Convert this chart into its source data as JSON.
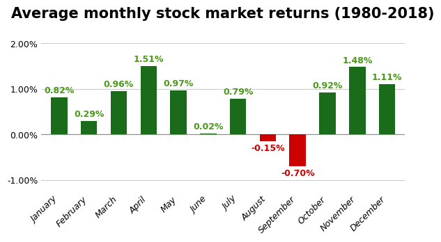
{
  "title": "Average monthly stock market returns (1980-2018)",
  "categories": [
    "January",
    "February",
    "March",
    "April",
    "May",
    "June",
    "July",
    "August",
    "September",
    "October",
    "November",
    "December"
  ],
  "values": [
    0.82,
    0.29,
    0.96,
    1.51,
    0.97,
    0.02,
    0.79,
    -0.15,
    -0.7,
    0.92,
    1.48,
    1.11
  ],
  "bar_colors": [
    "#1a6b1a",
    "#1a6b1a",
    "#1a6b1a",
    "#1a6b1a",
    "#1a6b1a",
    "#1a6b1a",
    "#1a6b1a",
    "#cc0000",
    "#cc0000",
    "#1a6b1a",
    "#1a6b1a",
    "#1a6b1a"
  ],
  "label_colors": [
    "#4a9a1a",
    "#4a9a1a",
    "#4a9a1a",
    "#4a9a1a",
    "#4a9a1a",
    "#4a9a1a",
    "#4a9a1a",
    "#cc0000",
    "#cc0000",
    "#4a9a1a",
    "#4a9a1a",
    "#4a9a1a"
  ],
  "ylim": [
    -1.25,
    2.35
  ],
  "yticks": [
    -1.0,
    0.0,
    1.0,
    2.0
  ],
  "ytick_labels": [
    "-1.00%",
    "0.00%",
    "1.00%",
    "2.00%"
  ],
  "background_color": "#ffffff",
  "title_fontsize": 15,
  "label_fontsize": 9,
  "tick_fontsize": 9,
  "bar_width": 0.55
}
